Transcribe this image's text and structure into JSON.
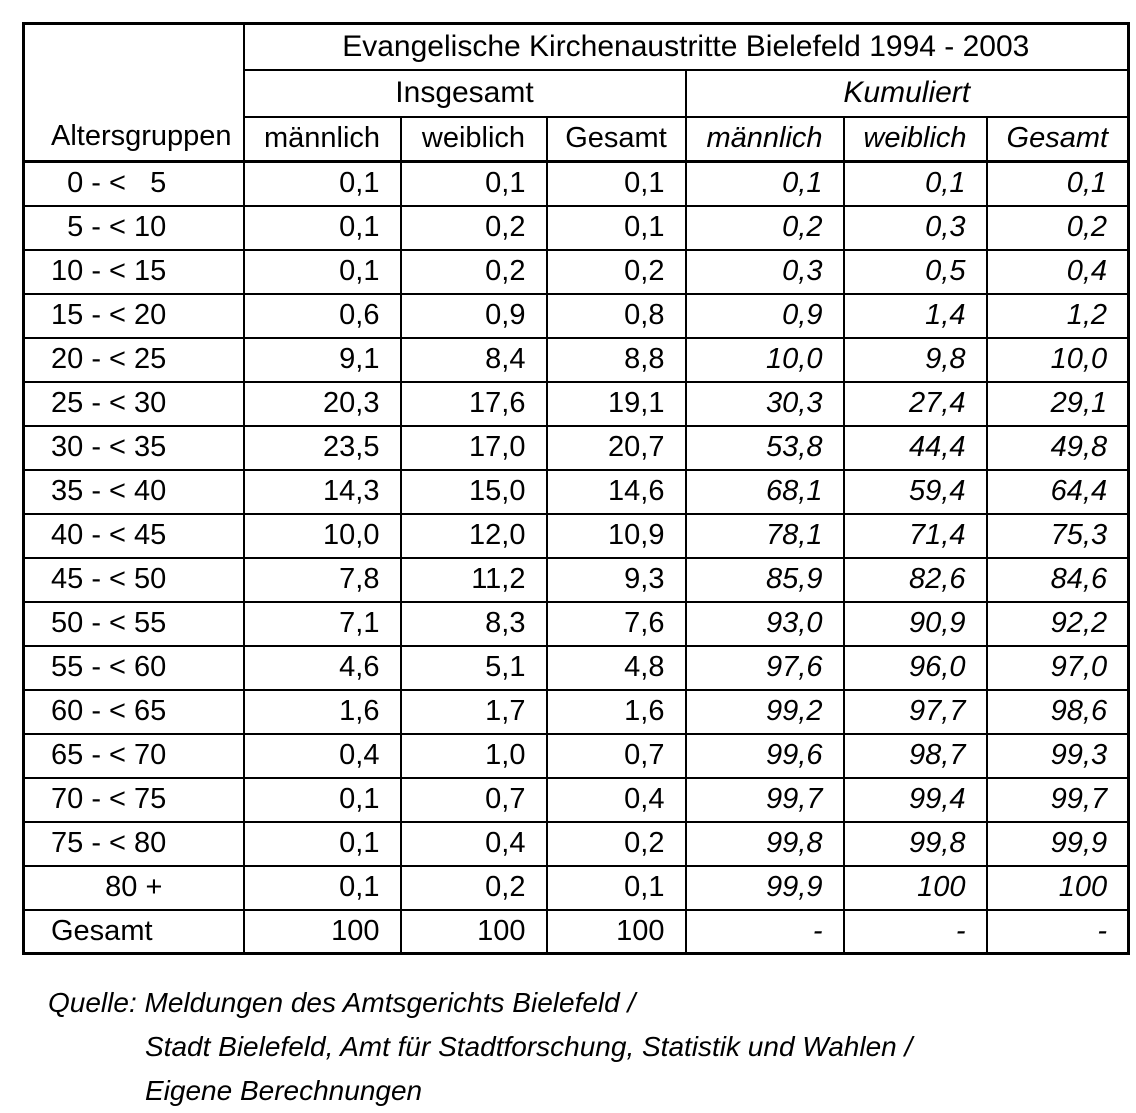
{
  "table": {
    "title": "Evangelische Kirchenaustritte Bielefeld 1994 - 2003",
    "row_header": "Altersgruppen",
    "groups": [
      {
        "label": "Insgesamt"
      },
      {
        "label": "Kumuliert"
      }
    ],
    "columns": [
      "männlich",
      "weiblich",
      "Gesamt",
      "männlich",
      "weiblich",
      "Gesamt"
    ],
    "rows": [
      {
        "label": "  0 - <   5",
        "values": [
          "0,1",
          "0,1",
          "0,1",
          "0,1",
          "0,1",
          "0,1"
        ]
      },
      {
        "label": "  5 - < 10",
        "values": [
          "0,1",
          "0,2",
          "0,1",
          "0,2",
          "0,3",
          "0,2"
        ]
      },
      {
        "label": "10 - < 15",
        "values": [
          "0,1",
          "0,2",
          "0,2",
          "0,3",
          "0,5",
          "0,4"
        ]
      },
      {
        "label": "15 - < 20",
        "values": [
          "0,6",
          "0,9",
          "0,8",
          "0,9",
          "1,4",
          "1,2"
        ]
      },
      {
        "label": "20 - < 25",
        "values": [
          "9,1",
          "8,4",
          "8,8",
          "10,0",
          "9,8",
          "10,0"
        ]
      },
      {
        "label": "25 - < 30",
        "values": [
          "20,3",
          "17,6",
          "19,1",
          "30,3",
          "27,4",
          "29,1"
        ]
      },
      {
        "label": "30 - < 35",
        "values": [
          "23,5",
          "17,0",
          "20,7",
          "53,8",
          "44,4",
          "49,8"
        ]
      },
      {
        "label": "35 - < 40",
        "values": [
          "14,3",
          "15,0",
          "14,6",
          "68,1",
          "59,4",
          "64,4"
        ]
      },
      {
        "label": "40 - < 45",
        "values": [
          "10,0",
          "12,0",
          "10,9",
          "78,1",
          "71,4",
          "75,3"
        ]
      },
      {
        "label": "45 - < 50",
        "values": [
          "7,8",
          "11,2",
          "9,3",
          "85,9",
          "82,6",
          "84,6"
        ]
      },
      {
        "label": "50 - < 55",
        "values": [
          "7,1",
          "8,3",
          "7,6",
          "93,0",
          "90,9",
          "92,2"
        ]
      },
      {
        "label": "55 - < 60",
        "values": [
          "4,6",
          "5,1",
          "4,8",
          "97,6",
          "96,0",
          "97,0"
        ]
      },
      {
        "label": "60 - < 65",
        "values": [
          "1,6",
          "1,7",
          "1,6",
          "99,2",
          "97,7",
          "98,6"
        ]
      },
      {
        "label": "65 - < 70",
        "values": [
          "0,4",
          "1,0",
          "0,7",
          "99,6",
          "98,7",
          "99,3"
        ]
      },
      {
        "label": "70 - < 75",
        "values": [
          "0,1",
          "0,7",
          "0,4",
          "99,7",
          "99,4",
          "99,7"
        ]
      },
      {
        "label": "75 - < 80",
        "values": [
          "0,1",
          "0,4",
          "0,2",
          "99,8",
          "99,8",
          "99,9"
        ]
      },
      {
        "label": "80 +",
        "align": "center",
        "values": [
          "0,1",
          "0,2",
          "0,1",
          "99,9",
          "100",
          "100"
        ]
      },
      {
        "label": "Gesamt",
        "values": [
          "100",
          "100",
          "100",
          "-",
          "-",
          "-"
        ]
      }
    ]
  },
  "source": {
    "line1": "Quelle: Meldungen des Amtsgerichts Bielefeld /",
    "line2": "Stadt Bielefeld, Amt für Stadtforschung, Statistik und Wahlen /",
    "line3": "Eigene Berechnungen"
  }
}
